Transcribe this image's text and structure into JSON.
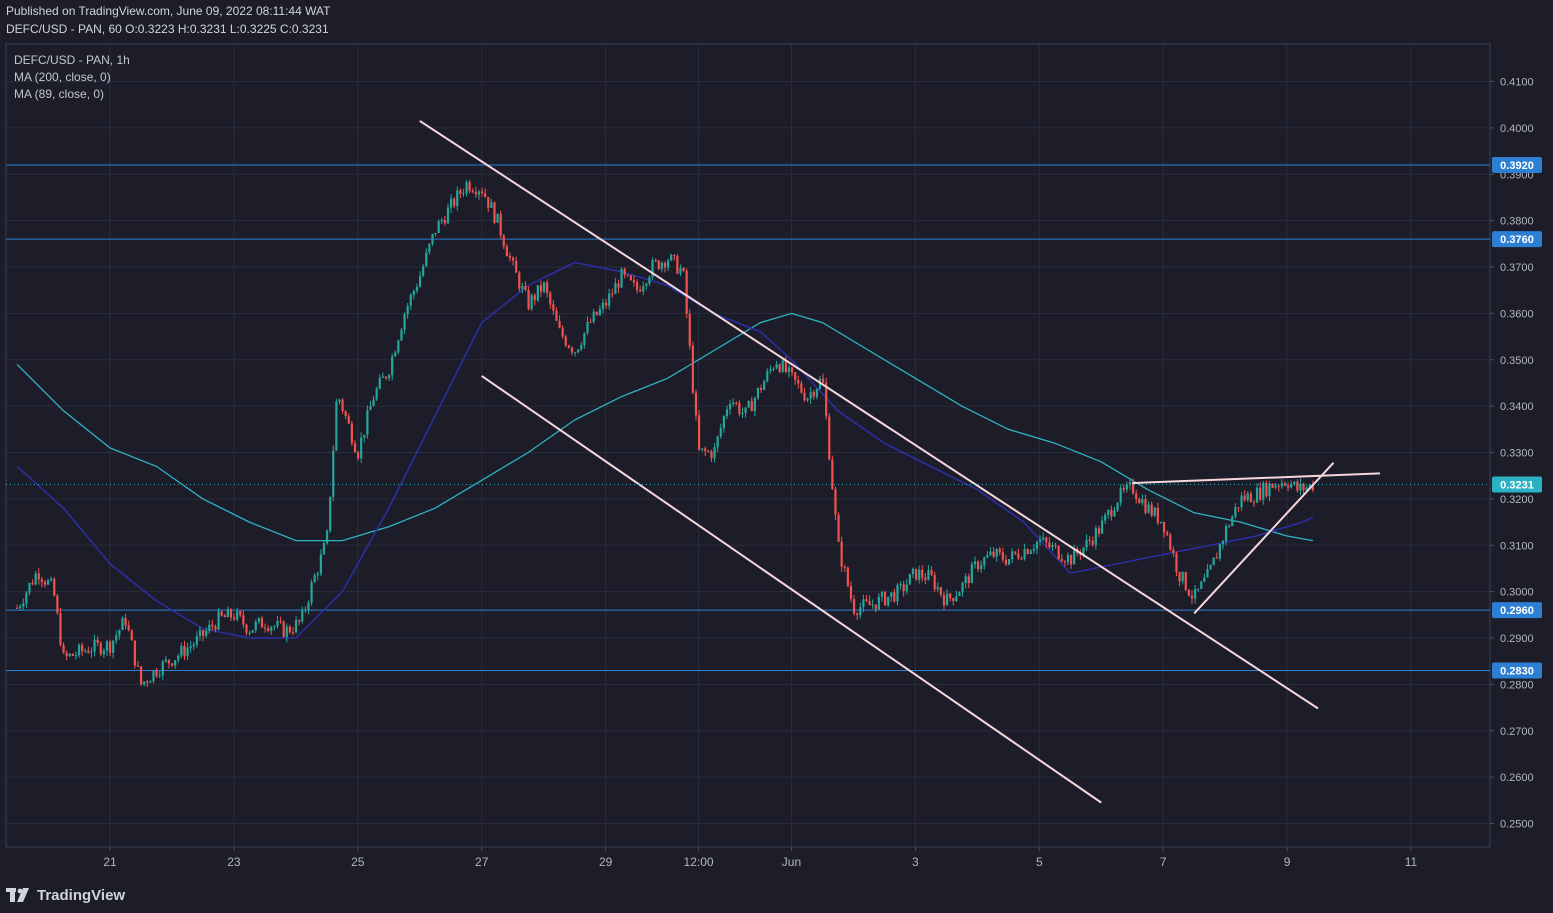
{
  "header": {
    "published": "Published on TradingView.com, June 09, 2022 08:11:44 WAT",
    "symbol_line": "DEFC/USD - PAN, 60 O:0.3223 H:0.3231 L:0.3225 C:0.3231"
  },
  "legend": {
    "symbol": "DEFC/USD - PAN, 1h",
    "ma200": "MA (200, close, 0)",
    "ma89": "MA (89, close, 0)"
  },
  "footer": {
    "brand": "TradingView"
  },
  "colors": {
    "background": "#1c1d29",
    "grid": "#2a2d3c",
    "up": "#26a69a",
    "down": "#ef5350",
    "ma200": "#2fb3c1",
    "ma89": "#2b2fa8",
    "hline": "#2d7fd3",
    "trendline": "#f6d7dc",
    "last_price": "#2ab2c4"
  },
  "chart_data": {
    "type": "candlestick",
    "symbol": "DEFC/USD - PAN",
    "timeframe": "1h",
    "y_ticks": [
      "0.4100",
      "0.4000",
      "0.3900",
      "0.3800",
      "0.3700",
      "0.3600",
      "0.3500",
      "0.3400",
      "0.3300",
      "0.3200",
      "0.3100",
      "0.3000",
      "0.2900",
      "0.2800",
      "0.2700",
      "0.2600",
      "0.2500"
    ],
    "x_ticks": [
      "21",
      "23",
      "25",
      "27",
      "29",
      "12:00",
      "Jun",
      "3",
      "5",
      "7",
      "9",
      "11"
    ],
    "ylim": [
      0.2453,
      0.4176
    ],
    "last_price": "0.3231",
    "horizontal_levels": [
      {
        "value": 0.392,
        "label": "0.3920"
      },
      {
        "value": 0.376,
        "label": "0.3760"
      },
      {
        "value": 0.296,
        "label": "0.2960"
      },
      {
        "value": 0.283,
        "label": "0.2830"
      }
    ],
    "ma200_points": [
      [
        "May 19 12:00",
        0.349
      ],
      [
        "May 20 06:00",
        0.339
      ],
      [
        "May 21 00:00",
        0.331
      ],
      [
        "May 21 18:00",
        0.327
      ],
      [
        "May 22 12:00",
        0.32
      ],
      [
        "May 23 06:00",
        0.315
      ],
      [
        "May 24 00:00",
        0.311
      ],
      [
        "May 24 18:00",
        0.311
      ],
      [
        "May 25 12:00",
        0.314
      ],
      [
        "May 26 06:00",
        0.318
      ],
      [
        "May 27 00:00",
        0.324
      ],
      [
        "May 27 18:00",
        0.33
      ],
      [
        "May 28 12:00",
        0.337
      ],
      [
        "May 29 06:00",
        0.342
      ],
      [
        "May 30 00:00",
        0.346
      ],
      [
        "May 30 18:00",
        0.352
      ],
      [
        "May 31 12:00",
        0.358
      ],
      [
        "Jun 1 00:00",
        0.36
      ],
      [
        "Jun 1 12:00",
        0.358
      ],
      [
        "Jun 2 06:00",
        0.352
      ],
      [
        "Jun 3 00:00",
        0.346
      ],
      [
        "Jun 3 18:00",
        0.34
      ],
      [
        "Jun 4 12:00",
        0.335
      ],
      [
        "Jun 5 06:00",
        0.332
      ],
      [
        "Jun 6 00:00",
        0.328
      ],
      [
        "Jun 6 18:00",
        0.322
      ],
      [
        "Jun 7 12:00",
        0.317
      ],
      [
        "Jun 8 06:00",
        0.315
      ],
      [
        "Jun 9 00:00",
        0.312
      ],
      [
        "Jun 9 10:00",
        0.311
      ]
    ],
    "ma89_points": [
      [
        "May 19 12:00",
        0.327
      ],
      [
        "May 20 06:00",
        0.318
      ],
      [
        "May 21 00:00",
        0.306
      ],
      [
        "May 21 18:00",
        0.298
      ],
      [
        "May 22 12:00",
        0.292
      ],
      [
        "May 23 06:00",
        0.29
      ],
      [
        "May 24 00:00",
        0.29
      ],
      [
        "May 24 18:00",
        0.3
      ],
      [
        "May 25 12:00",
        0.318
      ],
      [
        "May 26 06:00",
        0.338
      ],
      [
        "May 27 00:00",
        0.358
      ],
      [
        "May 27 18:00",
        0.366
      ],
      [
        "May 28 12:00",
        0.371
      ],
      [
        "May 29 06:00",
        0.369
      ],
      [
        "May 30 00:00",
        0.366
      ],
      [
        "May 30 18:00",
        0.36
      ],
      [
        "May 31 12:00",
        0.356
      ],
      [
        "Jun 1 00:00",
        0.35
      ],
      [
        "Jun 1 18:00",
        0.339
      ],
      [
        "Jun 2 12:00",
        0.332
      ],
      [
        "Jun 3 06:00",
        0.327
      ],
      [
        "Jun 4 00:00",
        0.322
      ],
      [
        "Jun 4 18:00",
        0.315
      ],
      [
        "Jun 5 12:00",
        0.304
      ],
      [
        "Jun 6 06:00",
        0.306
      ],
      [
        "Jun 7 00:00",
        0.308
      ],
      [
        "Jun 7 18:00",
        0.31
      ],
      [
        "Jun 8 12:00",
        0.312
      ],
      [
        "Jun 9 06:00",
        0.315
      ],
      [
        "Jun 9 10:00",
        0.316
      ]
    ],
    "trendlines": [
      {
        "name": "descending-channel-upper",
        "from": [
          "May 26 00:00",
          0.4015
        ],
        "to": [
          "Jun 9 12:00",
          0.2748
        ]
      },
      {
        "name": "descending-channel-lower",
        "from": [
          "May 27 00:00",
          0.3465
        ],
        "to": [
          "Jun 6 00:00",
          0.2545
        ]
      },
      {
        "name": "wedge-upper",
        "from": [
          "Jun 6 12:00",
          0.3234
        ],
        "to": [
          "Jun 10 12:00",
          0.3255
        ]
      },
      {
        "name": "wedge-lower",
        "from": [
          "Jun 7 12:00",
          0.2953
        ],
        "to": [
          "Jun 9 18:00",
          0.3278
        ]
      }
    ],
    "price_path": [
      [
        "May 19 12:00",
        0.2965
      ],
      [
        "May 19 20:00",
        0.3045
      ],
      [
        "May 20 02:00",
        0.3005
      ],
      [
        "May 20 06:00",
        0.2855
      ],
      [
        "May 20 16:00",
        0.2878
      ],
      [
        "May 21 00:00",
        0.2885
      ],
      [
        "May 21 06:00",
        0.294
      ],
      [
        "May 21 12:00",
        0.28
      ],
      [
        "May 21 18:00",
        0.2832
      ],
      [
        "May 22 02:00",
        0.2862
      ],
      [
        "May 22 10:00",
        0.2895
      ],
      [
        "May 22 18:00",
        0.294
      ],
      [
        "May 23 00:00",
        0.295
      ],
      [
        "May 23 06:00",
        0.292
      ],
      [
        "May 23 12:00",
        0.2935
      ],
      [
        "May 23 20:00",
        0.2915
      ],
      [
        "May 24 02:00",
        0.2935
      ],
      [
        "May 24 06:00",
        0.301
      ],
      [
        "May 24 12:00",
        0.311
      ],
      [
        "May 24 16:00",
        0.343
      ],
      [
        "May 25 00:00",
        0.33
      ],
      [
        "May 25 06:00",
        0.342
      ],
      [
        "May 25 12:00",
        0.348
      ],
      [
        "May 25 18:00",
        0.36
      ],
      [
        "May 26 00:00",
        0.368
      ],
      [
        "May 26 06:00",
        0.378
      ],
      [
        "May 26 12:00",
        0.383
      ],
      [
        "May 26 18:00",
        0.388
      ],
      [
        "May 27 00:00",
        0.387
      ],
      [
        "May 27 06:00",
        0.38
      ],
      [
        "May 27 12:00",
        0.37
      ],
      [
        "May 27 18:00",
        0.362
      ],
      [
        "May 28 00:00",
        0.366
      ],
      [
        "May 28 06:00",
        0.356
      ],
      [
        "May 28 12:00",
        0.352
      ],
      [
        "May 28 18:00",
        0.358
      ],
      [
        "May 29 00:00",
        0.362
      ],
      [
        "May 29 06:00",
        0.368
      ],
      [
        "May 29 12:00",
        0.365
      ],
      [
        "May 29 18:00",
        0.37
      ],
      [
        "May 30 00:00",
        0.372
      ],
      [
        "May 30 06:00",
        0.369
      ],
      [
        "May 30 12:00",
        0.33
      ],
      [
        "May 30 18:00",
        0.33
      ],
      [
        "May 31 00:00",
        0.342
      ],
      [
        "May 31 06:00",
        0.338
      ],
      [
        "May 31 12:00",
        0.344
      ],
      [
        "May 31 18:00",
        0.35
      ],
      [
        "Jun 1 00:00",
        0.346
      ],
      [
        "Jun 1 06:00",
        0.342
      ],
      [
        "Jun 1 12:00",
        0.346
      ],
      [
        "Jun 1 18:00",
        0.31
      ],
      [
        "Jun 2 00:00",
        0.2965
      ],
      [
        "Jun 2 06:00",
        0.297
      ],
      [
        "Jun 2 12:00",
        0.2985
      ],
      [
        "Jun 2 18:00",
        0.3
      ],
      [
        "Jun 3 00:00",
        0.304
      ],
      [
        "Jun 3 06:00",
        0.303
      ],
      [
        "Jun 3 12:00",
        0.298
      ],
      [
        "Jun 3 18:00",
        0.301
      ],
      [
        "Jun 4 00:00",
        0.306
      ],
      [
        "Jun 4 06:00",
        0.308
      ],
      [
        "Jun 4 12:00",
        0.307
      ],
      [
        "Jun 4 18:00",
        0.309
      ],
      [
        "Jun 5 00:00",
        0.311
      ],
      [
        "Jun 5 06:00",
        0.309
      ],
      [
        "Jun 5 12:00",
        0.307
      ],
      [
        "Jun 5 18:00",
        0.31
      ],
      [
        "Jun 6 00:00",
        0.314
      ],
      [
        "Jun 6 06:00",
        0.32
      ],
      [
        "Jun 6 12:00",
        0.3225
      ],
      [
        "Jun 6 18:00",
        0.318
      ],
      [
        "Jun 7 00:00",
        0.315
      ],
      [
        "Jun 7 06:00",
        0.304
      ],
      [
        "Jun 7 12:00",
        0.2985
      ],
      [
        "Jun 7 18:00",
        0.304
      ],
      [
        "Jun 8 00:00",
        0.313
      ],
      [
        "Jun 8 06:00",
        0.32
      ],
      [
        "Jun 8 12:00",
        0.321
      ],
      [
        "Jun 8 18:00",
        0.323
      ],
      [
        "Jun 9 00:00",
        0.324
      ],
      [
        "Jun 9 04:00",
        0.322
      ],
      [
        "Jun 9 08:00",
        0.3225
      ],
      [
        "Jun 9 10:00",
        0.3231
      ]
    ]
  }
}
